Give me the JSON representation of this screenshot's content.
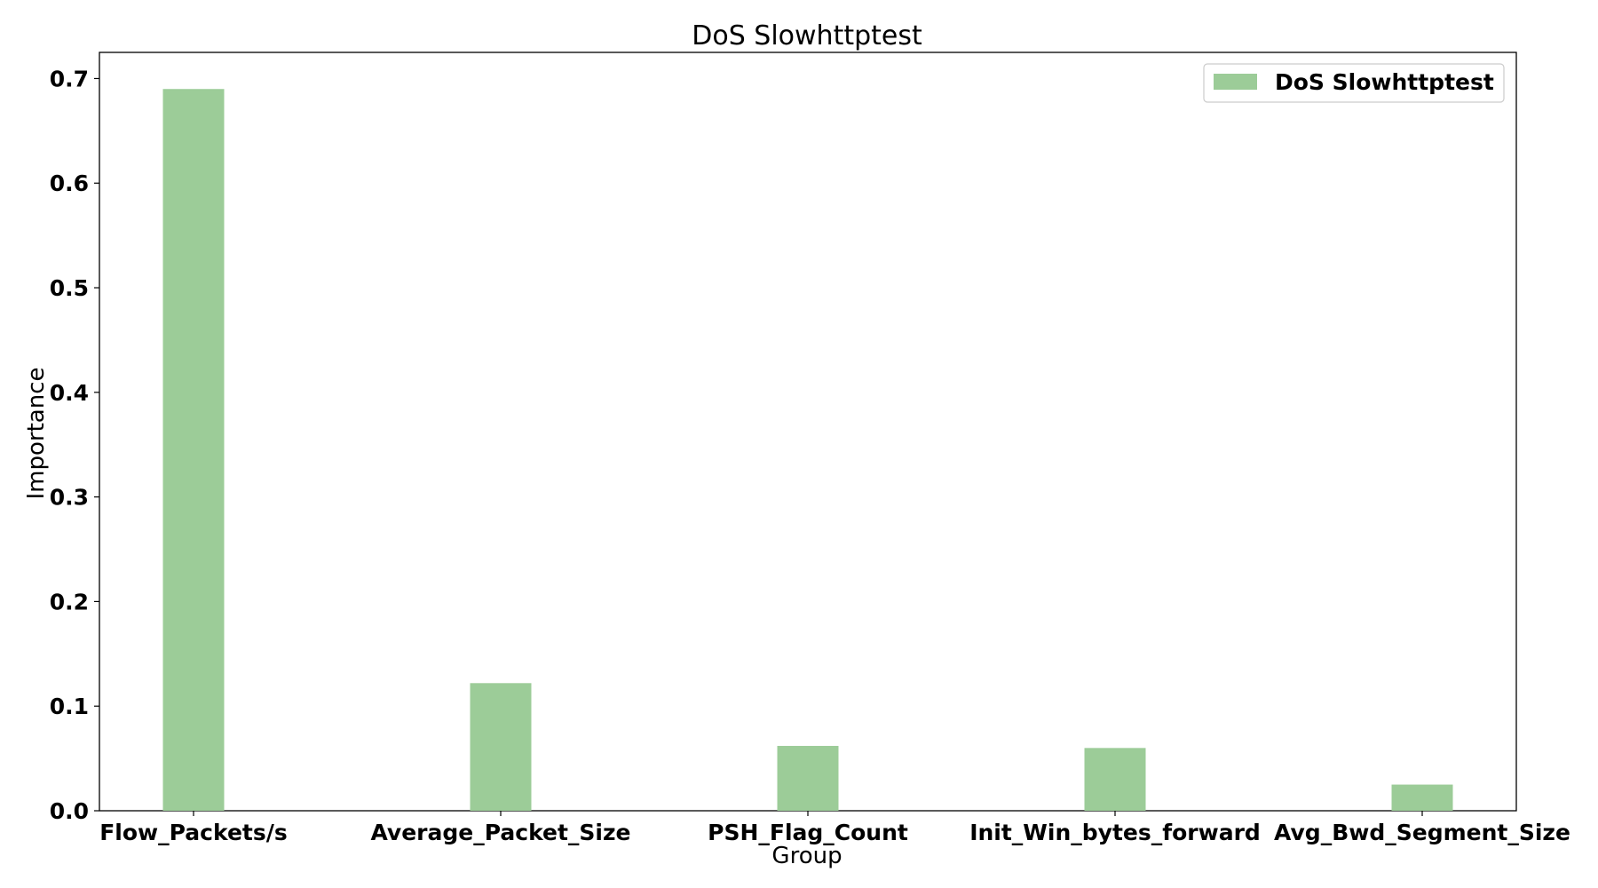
{
  "chart_data": {
    "type": "bar",
    "title": "DoS Slowhttptest",
    "xlabel": "Group",
    "ylabel": "Importance",
    "categories": [
      "Flow_Packets/s",
      "Average_Packet_Size",
      "PSH_Flag_Count",
      "Init_Win_bytes_forward",
      "Avg_Bwd_Segment_Size"
    ],
    "series": [
      {
        "name": "DoS Slowhttptest",
        "values": [
          0.69,
          0.122,
          0.062,
          0.06,
          0.025
        ],
        "color": "#9ccc98"
      }
    ],
    "ylim": [
      0,
      0.725
    ],
    "yticks": [
      "0.0",
      "0.1",
      "0.2",
      "0.3",
      "0.4",
      "0.5",
      "0.6",
      "0.7"
    ],
    "grid": false,
    "legend_position": "top-right"
  }
}
